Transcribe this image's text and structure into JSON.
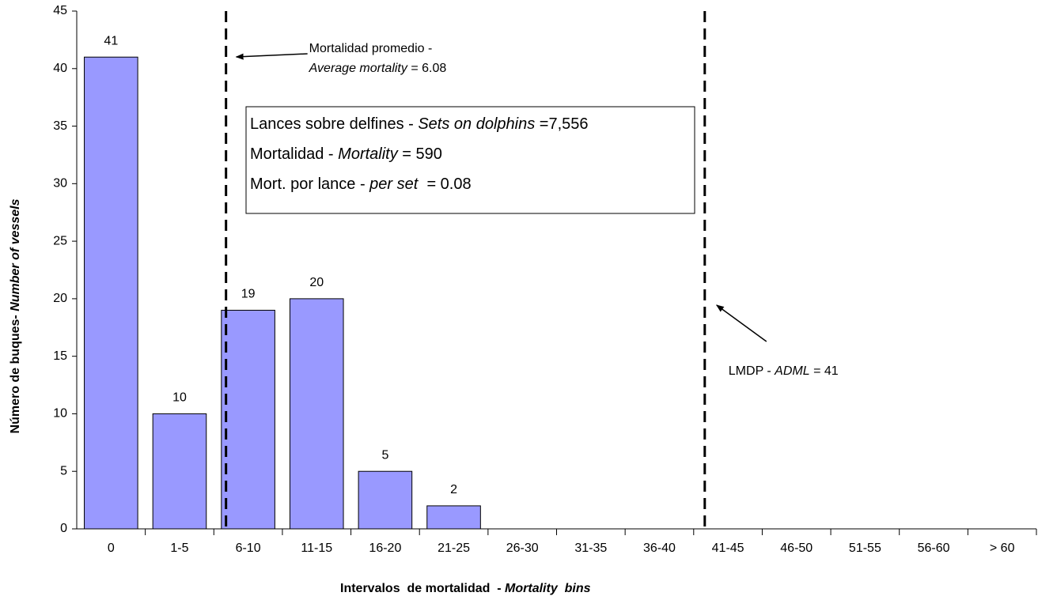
{
  "chart_data": {
    "type": "bar",
    "categories": [
      "0",
      "1-5",
      "6-10",
      "11-15",
      "16-20",
      "21-25",
      "26-30",
      "31-35",
      "36-40",
      "41-45",
      "46-50",
      "51-55",
      "56-60",
      "> 60"
    ],
    "values": [
      41,
      10,
      19,
      20,
      5,
      2,
      0,
      0,
      0,
      0,
      0,
      0,
      0,
      0
    ],
    "color": "#9999ff",
    "ylim": [
      0,
      45
    ],
    "yticks": [
      0,
      5,
      10,
      15,
      20,
      25,
      30,
      35,
      40,
      45
    ],
    "x_label": {
      "es": "Intervalos  de mortalidad  - ",
      "en": "Mortality  bins"
    },
    "y_label": {
      "es": "Número de buques- ",
      "en": "Number of vessels"
    },
    "reference_lines": [
      {
        "value": 6.08,
        "text_es": "Mortalidad promedio -",
        "text_en": "Average mortality",
        "value_label": " = 6.08"
      },
      {
        "value": 41,
        "text_es": "LMDP - ",
        "text_en": "ADML",
        "value_label": " = 41"
      }
    ],
    "info_box": [
      {
        "es": "Lances sobre delfines - ",
        "en": "Sets on dolphins",
        "value": " =7,556"
      },
      {
        "es": "Mortalidad - ",
        "en": "Mortality",
        "value": " = 590"
      },
      {
        "es": "Mort. por lance - ",
        "en": "per set",
        "value": "  = 0.08"
      }
    ]
  }
}
